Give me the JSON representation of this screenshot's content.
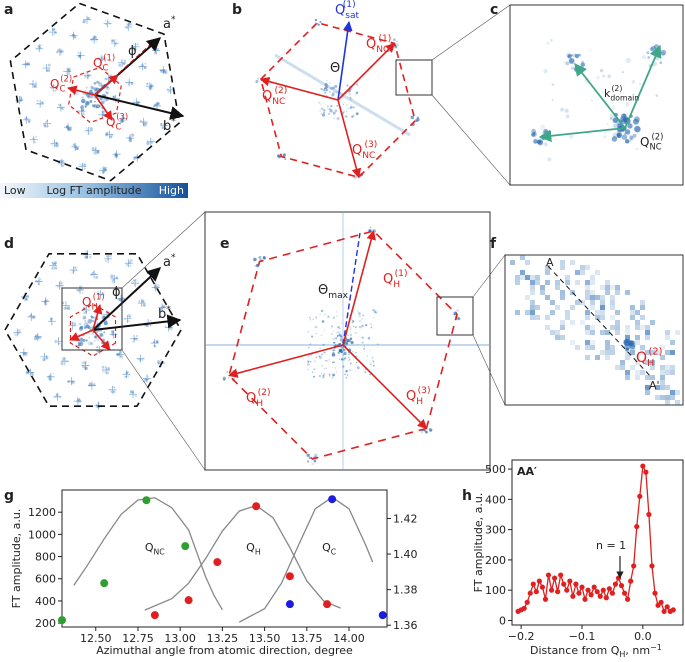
{
  "panel_letters": [
    "a",
    "b",
    "c",
    "d",
    "e",
    "f",
    "g",
    "h"
  ],
  "colorbar": {
    "low": "Low",
    "label": "Log FT amplitude",
    "high": "High"
  },
  "panel_a": {
    "a_star": {
      "base": "a",
      "sup": "*"
    },
    "b_star": {
      "base": "b",
      "sup": "*"
    },
    "phi": "ϕ",
    "q1": {
      "base": "Q",
      "sub": "C",
      "sup": "(1)"
    },
    "q2": {
      "base": "Q",
      "sub": "C",
      "sup": "(2)"
    },
    "q3": {
      "base": "Q",
      "sub": "C",
      "sup": "(3)"
    }
  },
  "panel_b": {
    "q_sat": {
      "base": "Q",
      "sub": "sat",
      "sup": "(1)"
    },
    "q1": {
      "base": "Q",
      "sub": "NC",
      "sup": "(1)"
    },
    "q2": {
      "base": "Q",
      "sub": "NC",
      "sup": "(2)"
    },
    "q3": {
      "base": "Q",
      "sub": "NC",
      "sup": "(3)"
    },
    "theta": "Θ"
  },
  "panel_c": {
    "k": {
      "base": "k",
      "sub": "domain",
      "sup": "(2)"
    },
    "q2": {
      "base": "Q",
      "sub": "NC",
      "sup": "(2)"
    }
  },
  "panel_d": {
    "a_star": {
      "base": "a",
      "sup": "*"
    },
    "b_star": {
      "base": "b",
      "sup": "*"
    },
    "phi": "ϕ",
    "q1": {
      "base": "Q",
      "sub": "H",
      "sup": "(1)"
    }
  },
  "panel_e": {
    "theta": {
      "base": "Θ",
      "sub": "max"
    },
    "q1": {
      "base": "Q",
      "sub": "H",
      "sup": "(1)"
    },
    "q2": {
      "base": "Q",
      "sub": "H",
      "sup": "(2)"
    },
    "q3": {
      "base": "Q",
      "sub": "H",
      "sup": "(3)"
    }
  },
  "panel_f": {
    "a": "A",
    "a_prime": "A'",
    "q2": {
      "base": "Q",
      "sub": "H",
      "sup": "(2)"
    }
  },
  "chart_data": [
    {
      "type": "scatter",
      "xlabel": "Azimuthal angle from atomic direction, degree",
      "ylabel": "FT amplitude, a.u.",
      "xlim": [
        12.3,
        14.225
      ],
      "ylim": [
        165,
        1400
      ],
      "y2lim": [
        1.359,
        1.436
      ],
      "xticks": [
        {
          "value": 12.5,
          "label": "12.50"
        },
        12.75,
        {
          "value": 13,
          "label": "13.00"
        },
        13.25,
        {
          "value": 13.5,
          "label": "13.50"
        },
        13.75,
        {
          "value": 14,
          "label": "14.00"
        }
      ],
      "yticks": [
        200,
        400,
        600,
        800,
        1000,
        1200
      ],
      "y2ticks": [
        1.36,
        1.38,
        {
          "value": 1.4,
          "label": "1.40"
        },
        1.42
      ],
      "series": [
        {
          "style": "marker",
          "color": "#2e9e2e",
          "x": [
            12.3,
            12.55,
            12.8,
            13.03
          ],
          "values": [
            227,
            560,
            1308,
            894
          ]
        },
        {
          "style": "marker",
          "color": "#e02020",
          "x": [
            12.85,
            13.05,
            13.22,
            13.45,
            13.65,
            13.87
          ],
          "values": [
            272,
            407,
            750,
            1254,
            623,
            371
          ]
        },
        {
          "style": "marker",
          "color": "#1c1ce0",
          "x": [
            13.65,
            13.9,
            14.2
          ],
          "values": [
            371,
            1317,
            272
          ]
        },
        {
          "style": "line",
          "color": "#888888",
          "label": {
            "base": "Q",
            "sub": "NC"
          },
          "x": [
            12.37,
            12.45,
            12.55,
            12.65,
            12.75,
            12.85,
            12.95,
            13.05,
            13.15,
            13.2,
            13.25
          ],
          "values": [
            540,
            720,
            960,
            1180,
            1310,
            1330,
            1240,
            1040,
            620,
            450,
            320
          ]
        },
        {
          "style": "line",
          "color": "#888888",
          "label": {
            "base": "Q",
            "sub": "H"
          },
          "x": [
            12.79,
            12.95,
            13.05,
            13.15,
            13.25,
            13.35,
            13.45,
            13.55,
            13.65,
            13.75,
            13.85,
            13.95
          ],
          "values": [
            317,
            420,
            560,
            780,
            1030,
            1210,
            1260,
            1150,
            880,
            580,
            400,
            335
          ]
        },
        {
          "style": "line",
          "color": "#888888",
          "label": {
            "base": "Q",
            "sub": "C"
          },
          "x": [
            13.35,
            13.5,
            13.6,
            13.7,
            13.8,
            13.9,
            14.0,
            14.1,
            14.14
          ],
          "values": [
            209,
            330,
            560,
            900,
            1230,
            1335,
            1230,
            900,
            750
          ]
        }
      ]
    },
    {
      "type": "line",
      "title": "AA′",
      "ylabel": "FT amplitude, a.u.",
      "xlabel": {
        "text": "Distance from Q",
        "sub": "H",
        "rest": ", nm",
        "sup": "−1"
      },
      "annotation": "n = 1",
      "color": "#e02020",
      "xlim": [
        -0.215,
        0.066
      ],
      "ylim": [
        -15,
        530
      ],
      "xticks": [
        {
          "value": -0.2,
          "label": "−0.2"
        },
        {
          "value": -0.1,
          "label": "−0.1"
        },
        {
          "value": 0,
          "label": "0.0"
        }
      ],
      "yticks": [
        0,
        100,
        200,
        300,
        400,
        500
      ],
      "x": [
        -0.205,
        -0.2,
        -0.195,
        -0.19,
        -0.185,
        -0.18,
        -0.175,
        -0.17,
        -0.165,
        -0.16,
        -0.155,
        -0.15,
        -0.145,
        -0.14,
        -0.135,
        -0.13,
        -0.125,
        -0.12,
        -0.115,
        -0.11,
        -0.105,
        -0.1,
        -0.095,
        -0.09,
        -0.085,
        -0.08,
        -0.075,
        -0.07,
        -0.065,
        -0.06,
        -0.055,
        -0.05,
        -0.045,
        -0.04,
        -0.035,
        -0.03,
        -0.025,
        -0.02,
        -0.015,
        -0.01,
        -0.005,
        0,
        0.005,
        0.01,
        0.015,
        0.02,
        0.025,
        0.03,
        0.035,
        0.04,
        0.045,
        0.05
      ],
      "values": [
        30,
        35,
        40,
        60,
        90,
        120,
        95,
        130,
        110,
        70,
        150,
        100,
        140,
        95,
        150,
        120,
        100,
        130,
        80,
        120,
        90,
        110,
        70,
        100,
        85,
        110,
        95,
        80,
        100,
        75,
        105,
        90,
        120,
        140,
        115,
        90,
        70,
        130,
        180,
        310,
        410,
        510,
        490,
        350,
        180,
        90,
        50,
        60,
        30,
        45,
        30,
        35
      ]
    }
  ]
}
